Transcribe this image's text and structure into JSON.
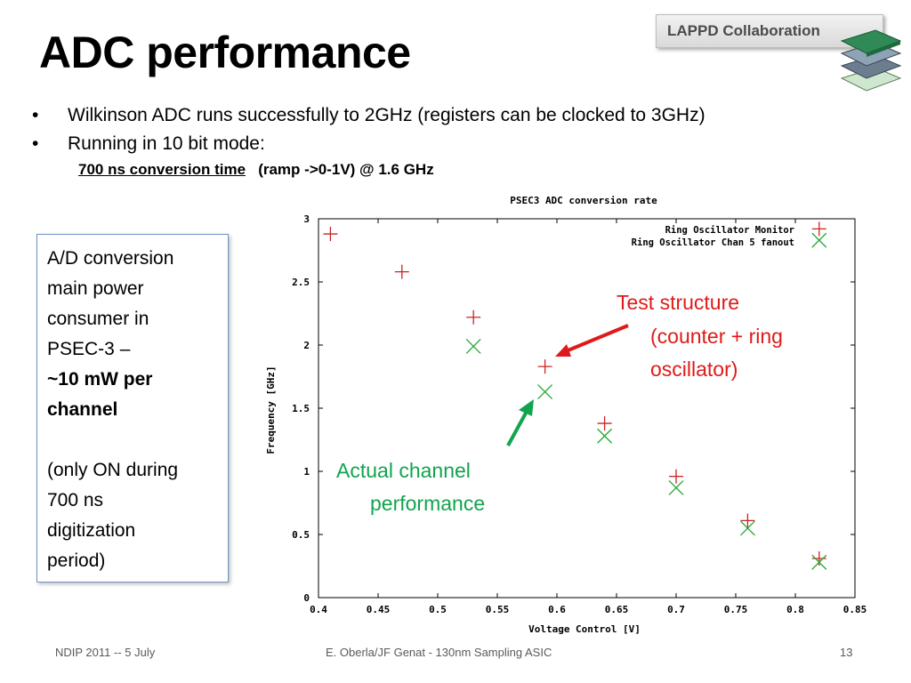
{
  "slide": {
    "title": "ADC performance",
    "badge": "LAPPD Collaboration",
    "bullets": [
      "Wilkinson ADC runs successfully to 2GHz  (registers can be clocked to 3GHz)",
      "Running in 10 bit mode:"
    ],
    "bullet_symbol": "•",
    "sub_bullet": {
      "underlined": "700 ns conversion time",
      "rest": "(ramp ->0-1V) @ 1.6 GHz"
    },
    "textbox": {
      "lines": [
        "A/D conversion",
        "main power",
        "consumer in",
        "PSEC-3 –"
      ],
      "bold_lines": [
        "~10 mW per",
        "channel"
      ],
      "paren_lines": [
        "(only ON during",
        "700 ns",
        "digitization",
        "period)"
      ]
    },
    "annotations": {
      "test_structure": [
        "Test structure",
        "(counter + ring",
        "oscillator)"
      ],
      "actual_channel": [
        "Actual channel",
        "performance"
      ]
    },
    "footer": {
      "left": "NDIP 2011 -- 5 July",
      "center": "E. Oberla/JF Genat - 130nm Sampling ASIC",
      "page": "13"
    },
    "colors": {
      "annotation_red": "#e01a1a",
      "annotation_green": "#11a44e"
    }
  },
  "chart_data": {
    "type": "scatter",
    "title": "PSEC3 ADC conversion rate",
    "xlabel": "Voltage Control [V]",
    "ylabel": "Frequency [GHz]",
    "xlim": [
      0.4,
      0.85
    ],
    "ylim": [
      0,
      3
    ],
    "x_ticks": [
      "0.4",
      "0.45",
      "0.5",
      "0.55",
      "0.6",
      "0.65",
      "0.7",
      "0.75",
      "0.8",
      "0.85"
    ],
    "y_ticks": [
      "0",
      "0.5",
      "1",
      "1.5",
      "2",
      "2.5",
      "3"
    ],
    "grid": false,
    "legend_position": "top-right",
    "series": [
      {
        "name": "Ring Oscillator Monitor",
        "marker": "plus",
        "color": "#cc2222",
        "points": [
          [
            0.41,
            2.88
          ],
          [
            0.47,
            2.58
          ],
          [
            0.53,
            2.22
          ],
          [
            0.59,
            1.83
          ],
          [
            0.64,
            1.38
          ],
          [
            0.7,
            0.96
          ],
          [
            0.76,
            0.61
          ],
          [
            0.82,
            0.31
          ],
          [
            0.82,
            2.92
          ]
        ]
      },
      {
        "name": "Ring Oscillator Chan 5 fanout",
        "marker": "cross",
        "color": "#22aa33",
        "points": [
          [
            0.53,
            1.99
          ],
          [
            0.59,
            1.63
          ],
          [
            0.64,
            1.28
          ],
          [
            0.7,
            0.87
          ],
          [
            0.76,
            0.55
          ],
          [
            0.82,
            0.28
          ],
          [
            0.82,
            2.83
          ]
        ]
      }
    ]
  }
}
